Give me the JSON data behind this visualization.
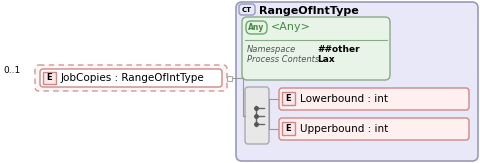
{
  "main_bg": "#e8e8f8",
  "main_border": "#9999bb",
  "ct_label": "CT",
  "main_title": "RangeOfIntType",
  "any_box_bg": "#e8f4e8",
  "any_box_border": "#88aa88",
  "any_label": "Any",
  "any_title": "<Any>",
  "namespace_label": "Namespace",
  "namespace_value": "##other",
  "process_label": "Process Contents",
  "process_value": "Lax",
  "seq_box_bg": "#e8e8e8",
  "seq_box_border": "#aaaaaa",
  "e_label": "E",
  "e_label_bg": "#fce8e8",
  "e_label_border": "#cc8888",
  "elem1_text": "Lowerbound : int",
  "elem2_text": "Upperbound : int",
  "elem_box_bg": "#fff0f0",
  "elem_box_border": "#cc8888",
  "job_text": "JobCopies : RangeOfIntType",
  "job_label": "E",
  "cardinality": "0..1",
  "line_color": "#999999",
  "text_color": "#000000",
  "italic_color": "#555555",
  "green_color": "#448844",
  "any_green_bg": "#e8f4e8",
  "any_green_border": "#66aa66"
}
